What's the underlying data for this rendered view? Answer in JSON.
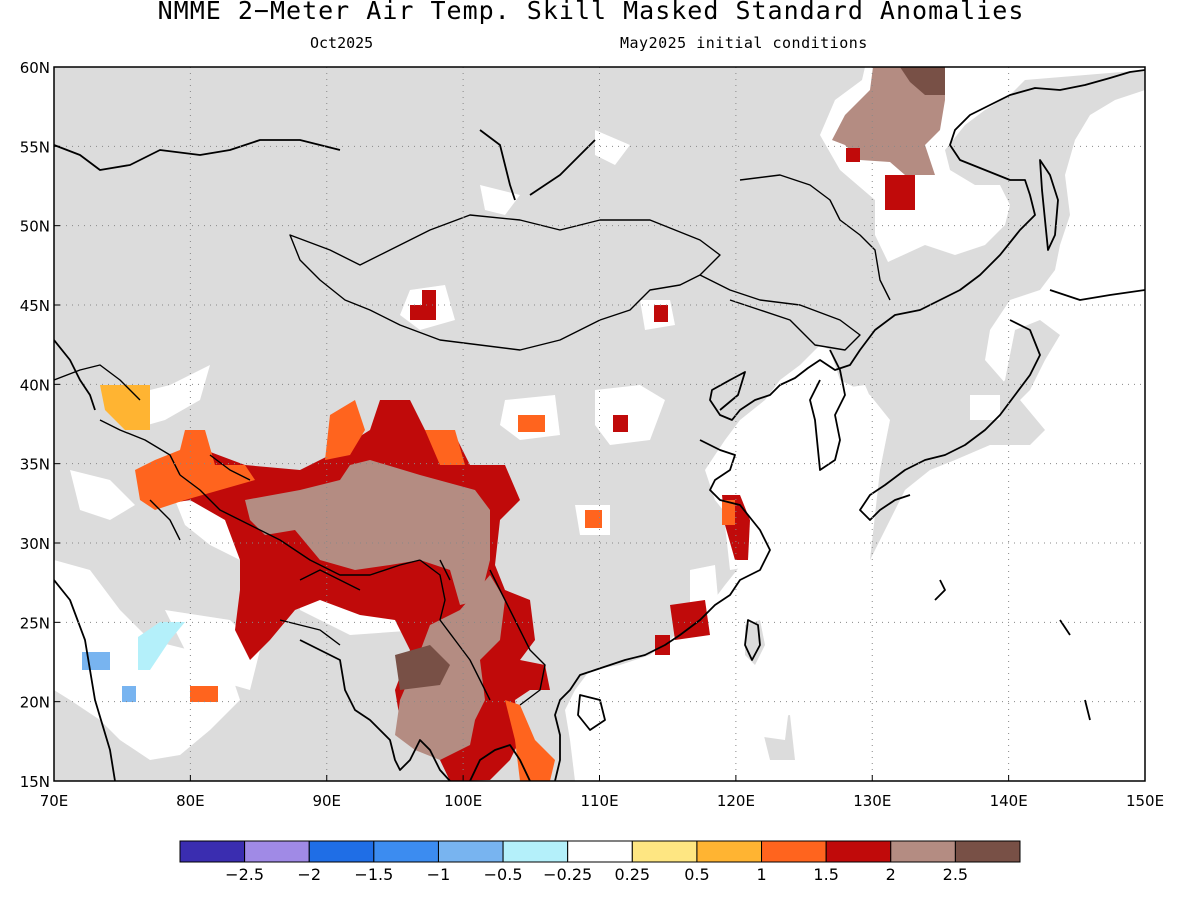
{
  "title": "NMME 2−Meter Air Temp. Skill Masked Standard Anomalies",
  "subtitle_left": "Oct2025",
  "subtitle_right": "May2025 initial conditions",
  "map": {
    "lon_range": [
      70,
      150
    ],
    "lat_range": [
      15,
      60
    ],
    "lon_ticks": [
      "70E",
      "80E",
      "90E",
      "100E",
      "110E",
      "120E",
      "130E",
      "140E",
      "150E"
    ],
    "lat_ticks": [
      "15N",
      "20N",
      "25N",
      "30N",
      "35N",
      "40N",
      "45N",
      "50N",
      "55N",
      "60N"
    ],
    "gridlines": "dotted",
    "background_colors": {
      "ocean": "#ffffff",
      "masked_land": "#dcdcdc"
    }
  },
  "colorbar": {
    "colors": [
      "#3a2db0",
      "#a08ae6",
      "#1f6ee6",
      "#3c8cf0",
      "#78b4f0",
      "#b4f0fa",
      "#ffffff",
      "#fee682",
      "#ffb432",
      "#ff641e",
      "#c00a0a",
      "#b48c82",
      "#785046"
    ],
    "labels": [
      "−2.5",
      "−2",
      "−1.5",
      "−1",
      "−0.5",
      "−0.25",
      "0.25",
      "0.5",
      "1",
      "1.5",
      "2",
      "2.5"
    ]
  },
  "anomaly_regions": [
    {
      "category": "2.5",
      "color": "#b48c82",
      "area": "Tibetan Plateau"
    },
    {
      "category": "2",
      "color": "#c00a0a",
      "area": "Tibetan Plateau margins"
    },
    {
      "category": "1.5",
      "color": "#ff641e",
      "area": "Tarim / western Tibet"
    },
    {
      "category": "2.5",
      "color": "#b48c82",
      "area": "Myanmar / Laos"
    },
    {
      "category": ">2.5",
      "color": "#785046",
      "area": "Myanmar"
    },
    {
      "category": "2",
      "color": "#c00a0a",
      "area": "Indochina"
    },
    {
      "category": "1.5",
      "color": "#ff641e",
      "area": "Vietnam coast"
    },
    {
      "category": "2.5",
      "color": "#b48c82",
      "area": "Far East Russia"
    },
    {
      "category": ">2.5",
      "color": "#785046",
      "area": "Okhotsk coast"
    },
    {
      "category": "2",
      "color": "#c00a0a",
      "area": "Far East Russia south"
    },
    {
      "category": "2",
      "color": "#c00a0a",
      "area": "Mongolia"
    },
    {
      "category": "2",
      "color": "#c00a0a",
      "area": "Mongolia east"
    },
    {
      "category": "2",
      "color": "#c00a0a",
      "area": "South China"
    },
    {
      "category": "2",
      "color": "#c00a0a",
      "area": "Shanghai coast"
    },
    {
      "category": "1.5",
      "color": "#ff641e",
      "area": "Central China"
    },
    {
      "category": "1",
      "color": "#ffb432",
      "area": "Pamir"
    },
    {
      "category": "-1",
      "color": "#78b4f0",
      "area": "India west"
    },
    {
      "category": "-0.25",
      "color": "#b4f0fa",
      "area": "India west"
    }
  ]
}
